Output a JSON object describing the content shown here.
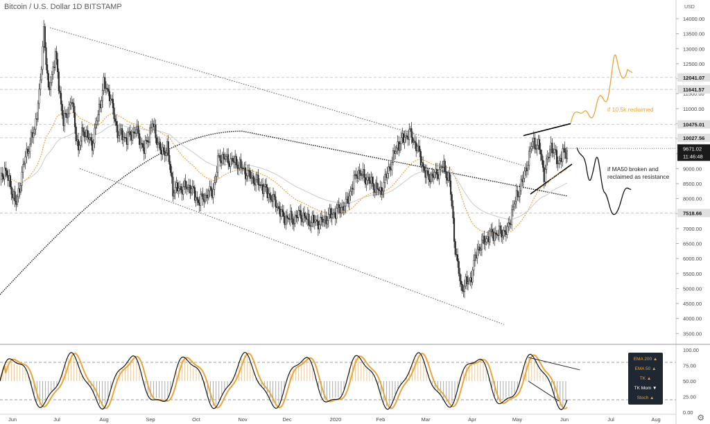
{
  "title": "Bitcoin / U.S. Dollar  1D  BITSTAMP",
  "price_axis_unit": "USD",
  "settings_icon": "gear-icon",
  "chart_data": [
    {
      "type": "candlestick",
      "title": "Bitcoin / U.S. Dollar  1D  BITSTAMP",
      "y_ticks": [
        "14000.00",
        "13500.00",
        "13000.00",
        "12500.00",
        "12000.00",
        "11500.00",
        "11000.00",
        "10500.00",
        "10000.00",
        "9500.00",
        "9000.00",
        "8500.00",
        "8000.00",
        "7500.00",
        "7000.00",
        "6500.00",
        "6000.00",
        "5500.00",
        "5000.00",
        "4500.00",
        "4000.00",
        "3500.00"
      ],
      "ylim": [
        3300,
        14300
      ],
      "x_ticks": [
        "Jun",
        "Jul",
        "Aug",
        "Sep",
        "Oct",
        "Nov",
        "Dec",
        "2020",
        "Feb",
        "Mar",
        "Apr",
        "May",
        "Jun",
        "Jul",
        "Aug"
      ],
      "horizontal_levels": [
        "12041.07",
        "11641.57",
        "10475.01",
        "10027.56",
        "7518.66"
      ],
      "current_price": "9671.02",
      "countdown": "11:46:48",
      "monthly_closes": [
        8550,
        10800,
        9600,
        8300,
        9200,
        7550,
        7200,
        9350,
        8550,
        6450,
        8650,
        9500,
        9671.02
      ],
      "annotations": [
        "if 10.5k reclaimed",
        "if MA50 broken and reclaimed as resistance"
      ],
      "colors": {
        "up": "#ffffff",
        "down": "#2a2a2a",
        "ema50": "#e8a43a",
        "ema200": "#111111",
        "price_label_bg": "#1a1a1a"
      }
    },
    {
      "type": "line",
      "name": "oscillator",
      "y_ticks": [
        "100.00",
        "75.00",
        "50.00",
        "25.00",
        "0.00"
      ],
      "ylim": [
        0,
        100
      ],
      "levels": [
        80,
        20
      ],
      "legend": [
        "EMA 200 ▲",
        "EMA 50 ▲",
        "TK ▲",
        "TK Mom ▼",
        "Stoch ▲"
      ],
      "colors": {
        "fast": "#111111",
        "slow": "#e8a43a",
        "hist_up": "#e8c9a0",
        "hist_down": "#a9a9a9"
      }
    }
  ]
}
